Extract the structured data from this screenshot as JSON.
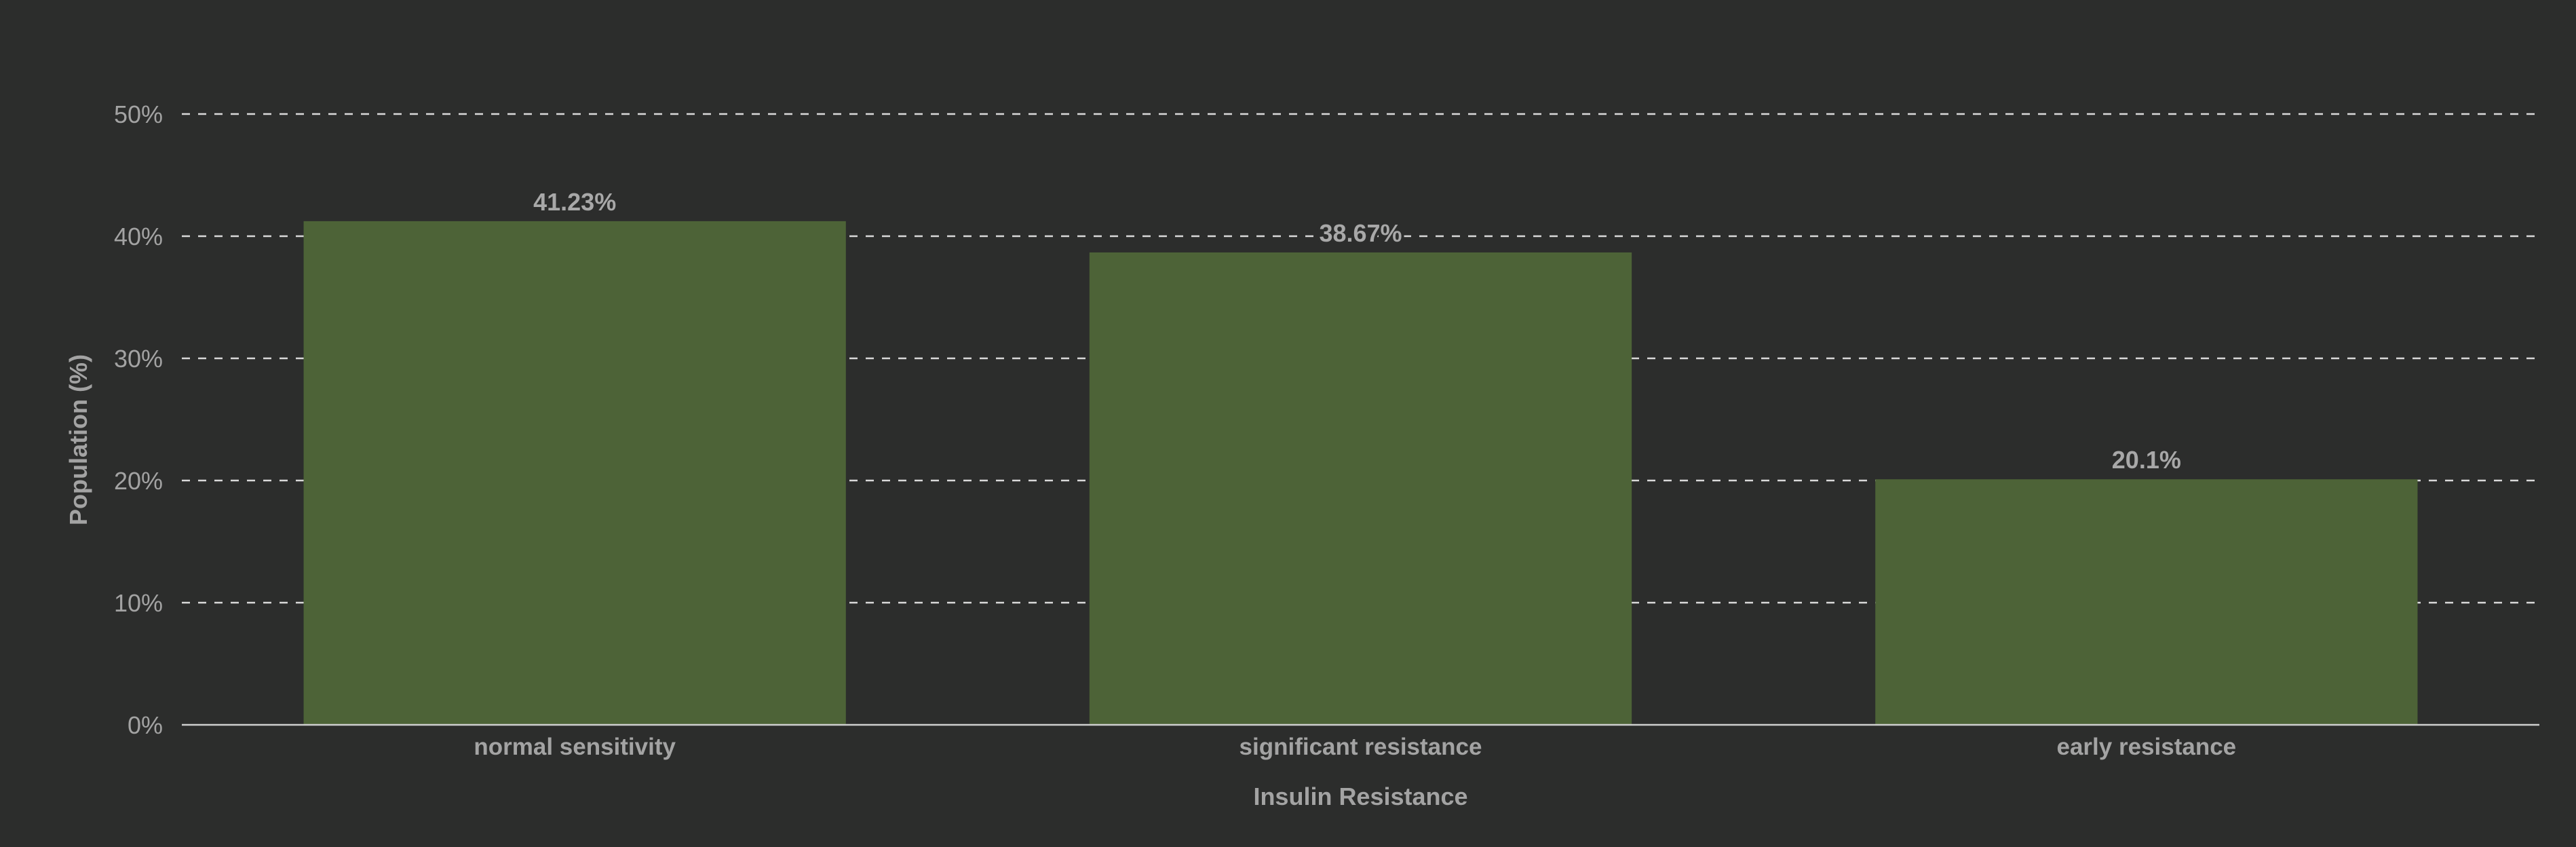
{
  "chart_data": {
    "type": "bar",
    "categories": [
      "normal sensitivity",
      "significant resistance",
      "early resistance"
    ],
    "values": [
      41.23,
      38.67,
      20.1
    ],
    "data_labels": [
      "41.23%",
      "38.67%",
      "20.1%"
    ],
    "title": "",
    "xlabel": "Insulin Resistance",
    "ylabel": "Population (%)",
    "ylim": [
      0,
      50
    ],
    "y_ticks": [
      0,
      10,
      20,
      30,
      40,
      50
    ],
    "y_tick_labels": [
      "0%",
      "10%",
      "20%",
      "30%",
      "40%",
      "50%"
    ],
    "grid": true,
    "legend": "none",
    "bar_color": "#4d6337",
    "background_color": "#2c2d2c"
  }
}
